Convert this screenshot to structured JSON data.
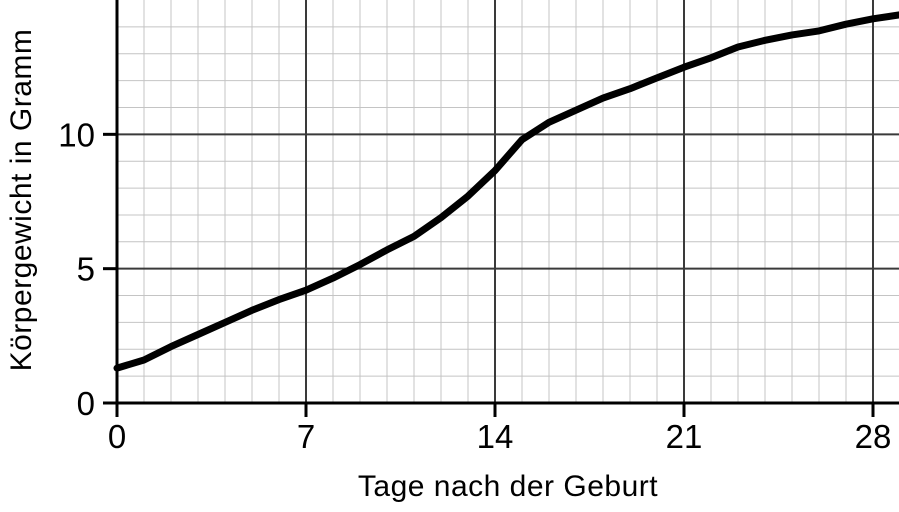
{
  "chart_data": {
    "type": "line",
    "title": "",
    "xlabel": "Tage nach der Geburt",
    "ylabel": "Körpergewicht in Gramm",
    "x": [
      0,
      1,
      2,
      3,
      4,
      5,
      6,
      7,
      8,
      9,
      10,
      11,
      12,
      13,
      14,
      15,
      16,
      17,
      18,
      19,
      20,
      21,
      22,
      23,
      24,
      25,
      26,
      27,
      28,
      29
    ],
    "series": [
      {
        "name": "Körpergewicht",
        "values": [
          1.3,
          1.6,
          2.1,
          2.55,
          3.0,
          3.45,
          3.85,
          4.2,
          4.65,
          5.15,
          5.7,
          6.2,
          6.9,
          7.7,
          8.65,
          9.8,
          10.45,
          10.9,
          11.35,
          11.7,
          12.1,
          12.5,
          12.85,
          13.25,
          13.5,
          13.7,
          13.85,
          14.1,
          14.3,
          14.45
        ]
      }
    ],
    "xlim": [
      0,
      29
    ],
    "ylim": [
      0,
      15
    ],
    "xticks": [
      0,
      7,
      14,
      21,
      28
    ],
    "xtick_labels": [
      "0",
      "7",
      "14",
      "21",
      "28"
    ],
    "yticks": [
      0,
      5,
      10
    ],
    "ytick_labels": [
      "0",
      "5",
      "10"
    ],
    "grid": "minor grid every 1 day / 1 gram, major grid every 7 days / 5 grams",
    "legend": "none",
    "colors": {
      "curve": "#000000",
      "axis": "#000000",
      "grid_major": "#3a3a3a",
      "grid_minor": "#c4c4c4",
      "background": "#ffffff",
      "text": "#000000"
    }
  }
}
